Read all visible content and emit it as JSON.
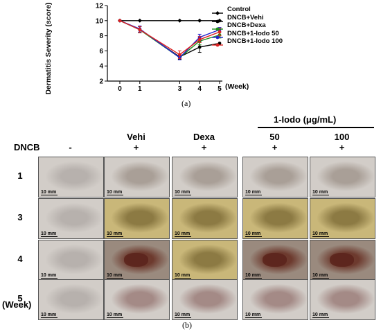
{
  "figure": {
    "panel_a_label": "(a)",
    "panel_b_label": "(b)"
  },
  "chart_data": {
    "type": "line",
    "title": "",
    "xlabel": "(Week)",
    "ylabel": "Dermatitis Severity (score)",
    "x": [
      0,
      1,
      3,
      4,
      5
    ],
    "xticks": [
      "0",
      "1",
      "3",
      "4",
      "5"
    ],
    "yticks": [
      "2",
      "4",
      "6",
      "8",
      "10",
      "12"
    ],
    "ylim": [
      2,
      12
    ],
    "grid": false,
    "legend_position": "right",
    "series": [
      {
        "name": "Control",
        "color": "#000000",
        "marker": "diamond",
        "values": [
          10,
          10,
          10,
          10,
          10
        ],
        "errors": [
          0,
          0,
          0,
          0,
          0
        ]
      },
      {
        "name": "DNCB+Vehi",
        "color": "#000000",
        "marker": "circle",
        "values": [
          10,
          8.8,
          5.2,
          6.5,
          7.0
        ],
        "errors": [
          0,
          0.4,
          0.3,
          0.7,
          0
        ]
      },
      {
        "name": "DNCB+Dexa",
        "color": "#1a8f1a",
        "marker": "circle",
        "values": [
          10,
          8.8,
          5.1,
          7.3,
          8.1
        ],
        "errors": [
          0,
          0.4,
          0.3,
          0.5,
          0.4
        ]
      },
      {
        "name": "DNCB+1-Iodo 50",
        "color": "#2222cc",
        "marker": "circle",
        "values": [
          10,
          8.9,
          5.1,
          7.8,
          8.8
        ],
        "errors": [
          0,
          0.4,
          0.3,
          0.4,
          0.3
        ]
      },
      {
        "name": "DNCB+1-Iodo 100",
        "color": "#dd2222",
        "marker": "circle",
        "values": [
          10,
          8.8,
          5.5,
          7.5,
          8.5
        ],
        "errors": [
          0,
          0.4,
          0.5,
          0.4,
          0.5
        ]
      }
    ]
  },
  "grid_panel": {
    "group_header": "1-Iodo (μg/mL)",
    "dncb_label": "DNCB",
    "week_label": "(Week)",
    "columns": [
      {
        "treatment": "",
        "dncb": "-"
      },
      {
        "treatment": "Vehi",
        "dncb": "+"
      },
      {
        "treatment": "Dexa",
        "dncb": "+"
      },
      {
        "treatment": "50",
        "dncb": "+"
      },
      {
        "treatment": "100",
        "dncb": "+"
      }
    ],
    "rows": [
      "1",
      "3",
      "4",
      "5"
    ],
    "scale_bar": "10 mm",
    "tone_colors": {
      "normal": "#b7b1ad",
      "mild": "#a99f97",
      "crust": "#8c7a43",
      "lesion": "#6d3a2e",
      "healing": "#a48a86"
    },
    "tones": [
      [
        "normal",
        "mild",
        "mild",
        "mild",
        "mild"
      ],
      [
        "normal",
        "crust",
        "crust",
        "crust",
        "crust"
      ],
      [
        "normal",
        "lesion",
        "crust",
        "lesion",
        "lesion"
      ],
      [
        "normal",
        "healing",
        "healing",
        "healing",
        "healing"
      ]
    ]
  }
}
